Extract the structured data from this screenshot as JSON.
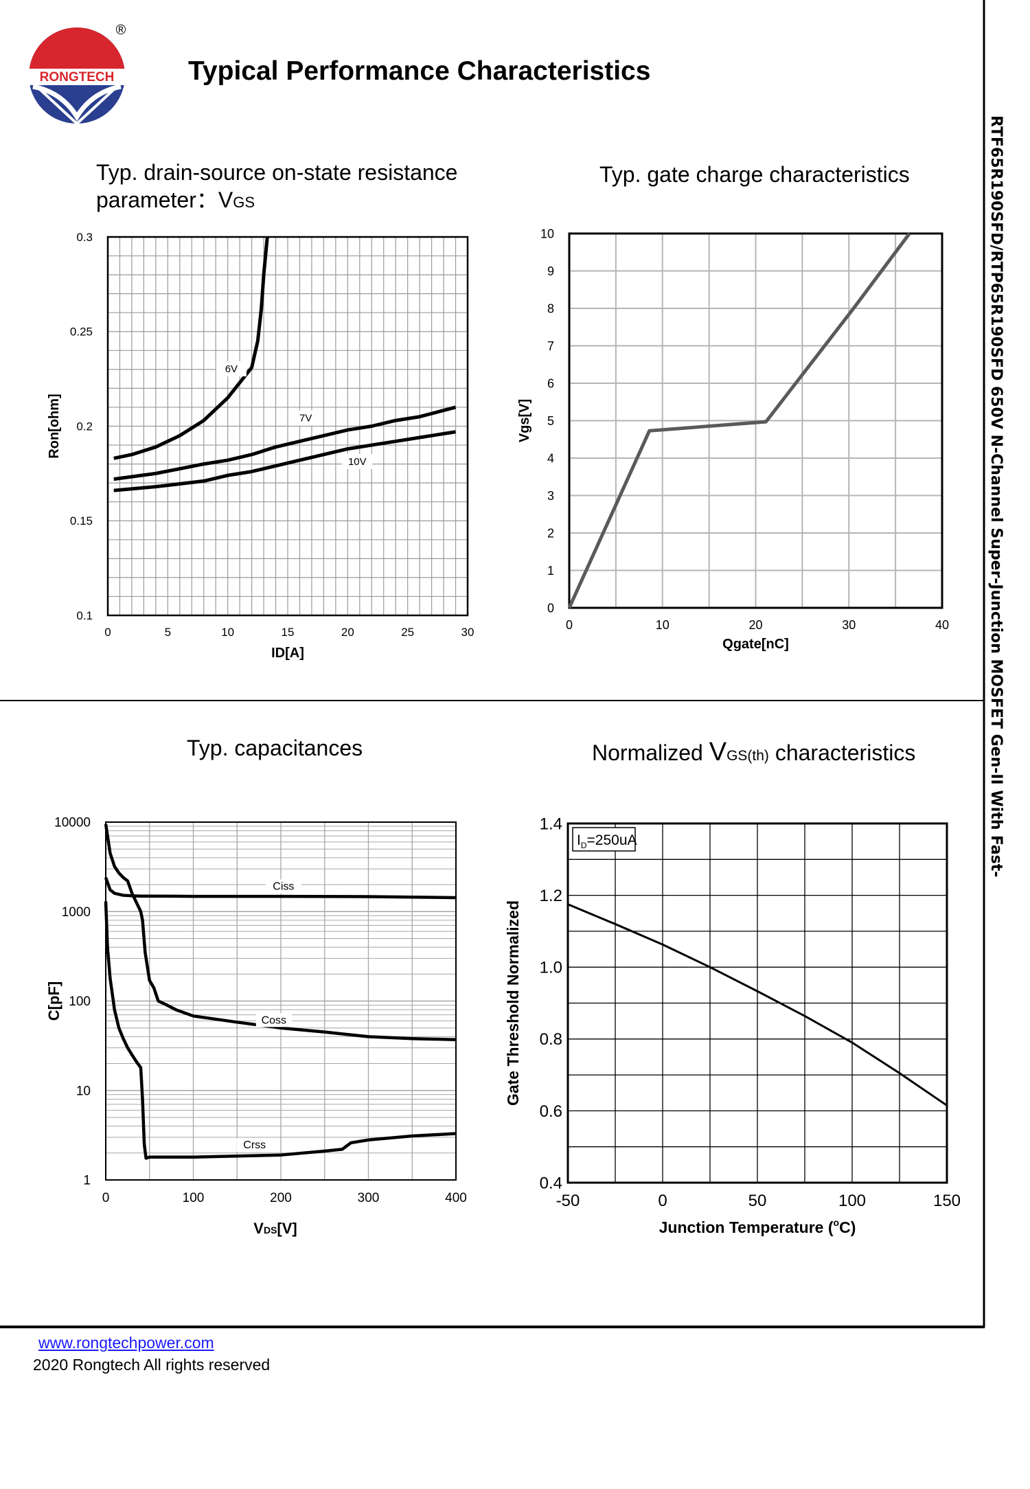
{
  "header": {
    "brand": "RONGTECH",
    "registered_mark": "®",
    "title": "Typical Performance Characteristics",
    "side_title": "RTF65R190SFD/RTP65R190SFD 650V N-Channel Super-Junction MOSFET Gen-II With Fast-"
  },
  "footer": {
    "link": "www.rongtechpower.com",
    "copyright": "2020 Rongtech All rights reserved"
  },
  "chart_data": [
    {
      "type": "line",
      "title": "Typ. drain-source on-state resistance",
      "subtitle_prefix": "parameter：",
      "subtitle_var": "V",
      "subtitle_sub": "GS",
      "xlabel": "ID[A]",
      "ylabel": "Ron[ohm]",
      "xlim": [
        0,
        30
      ],
      "ylim": [
        0.1,
        0.3
      ],
      "xticks": [
        0,
        5,
        10,
        15,
        20,
        25,
        30
      ],
      "yticks": [
        0.1,
        0.15,
        0.2,
        0.25,
        0.3
      ],
      "ytick_labels": [
        "0.1",
        "0.15",
        "0.2",
        "0.25",
        "0.3"
      ],
      "grid": true,
      "series": [
        {
          "name": "6V",
          "x": [
            0.5,
            2,
            4,
            6,
            8,
            10,
            12,
            12.5,
            12.8,
            13,
            13.3
          ],
          "y": [
            0.183,
            0.185,
            0.189,
            0.195,
            0.203,
            0.215,
            0.231,
            0.245,
            0.262,
            0.28,
            0.3
          ]
        },
        {
          "name": "7V",
          "x": [
            0.5,
            4,
            8,
            10,
            12,
            14,
            16,
            18,
            20,
            22,
            24,
            26,
            29
          ],
          "y": [
            0.172,
            0.175,
            0.18,
            0.182,
            0.185,
            0.189,
            0.192,
            0.195,
            0.198,
            0.2,
            0.203,
            0.205,
            0.21
          ]
        },
        {
          "name": "10V",
          "x": [
            0.5,
            4,
            8,
            10,
            12,
            14,
            16,
            18,
            20,
            22,
            24,
            26,
            29
          ],
          "y": [
            0.166,
            0.168,
            0.171,
            0.174,
            0.176,
            0.179,
            0.182,
            0.185,
            0.188,
            0.19,
            0.192,
            0.194,
            0.197
          ]
        }
      ],
      "annotations": [
        "6V",
        "7V",
        "10V"
      ]
    },
    {
      "type": "line",
      "title": "Typ. gate charge characteristics",
      "xlabel": "Qgate[nC]",
      "ylabel": "Vgs[V]",
      "xlim": [
        0,
        40
      ],
      "ylim": [
        0,
        10
      ],
      "xticks": [
        0,
        10,
        20,
        30,
        40
      ],
      "yticks": [
        0,
        1,
        2,
        3,
        4,
        5,
        6,
        7,
        8,
        9,
        10
      ],
      "grid": true,
      "series": [
        {
          "name": "",
          "x": [
            0,
            8.6,
            21.1,
            30.5,
            36.5
          ],
          "y": [
            0,
            4.73,
            4.97,
            8.0,
            10.0
          ]
        }
      ]
    },
    {
      "type": "line",
      "title": "Typ. capacitances",
      "xlabel_var": "V",
      "xlabel_sub": "DS",
      "xlabel_unit": "[V]",
      "ylabel": "C[pF]",
      "xlim": [
        0,
        400
      ],
      "ylim": [
        1,
        10000
      ],
      "yscale": "log",
      "xticks": [
        0,
        100,
        200,
        300,
        400
      ],
      "yticks": [
        1,
        10,
        100,
        1000,
        10000
      ],
      "grid": true,
      "series": [
        {
          "name": "Ciss",
          "x": [
            0,
            5,
            10,
            20,
            30,
            40,
            50,
            100,
            200,
            300,
            400
          ],
          "y": [
            2400,
            1750,
            1600,
            1520,
            1500,
            1490,
            1490,
            1480,
            1480,
            1470,
            1430
          ]
        },
        {
          "name": "Coss",
          "x": [
            0,
            5,
            10,
            15,
            20,
            25,
            30,
            40,
            42,
            45,
            50,
            55,
            60,
            70,
            80,
            100,
            150,
            200,
            250,
            300,
            350,
            400
          ],
          "y": [
            9500,
            4500,
            3200,
            2700,
            2400,
            2200,
            1600,
            1000,
            800,
            350,
            170,
            140,
            100,
            90,
            80,
            68,
            58,
            50,
            45,
            40,
            38,
            37
          ]
        },
        {
          "name": "Crss",
          "x": [
            0,
            2,
            5,
            10,
            15,
            20,
            25,
            30,
            35,
            40,
            42,
            44,
            46,
            50,
            100,
            150,
            200,
            250,
            270,
            280,
            300,
            350,
            400
          ],
          "y": [
            1300,
            400,
            180,
            80,
            50,
            38,
            30,
            25,
            21,
            18,
            8,
            2.5,
            1.75,
            1.8,
            1.8,
            1.85,
            1.9,
            2.1,
            2.2,
            2.6,
            2.8,
            3.1,
            3.3
          ]
        }
      ],
      "annotations": [
        "Ciss",
        "Coss",
        "Crss"
      ]
    },
    {
      "type": "line",
      "title_prefix": "Normalized ",
      "title_var": "V",
      "title_sub": "GS(th)",
      "title_suffix": " characteristics",
      "xlabel": "Junction Temperature (",
      "xlabel_sup": "o",
      "xlabel_end": "C)",
      "ylabel": "Gate Threshold Normalized",
      "xlim": [
        -50,
        150
      ],
      "ylim": [
        0.4,
        1.4
      ],
      "xticks": [
        -50,
        0,
        50,
        100,
        150
      ],
      "yticks": [
        0.4,
        0.6,
        0.8,
        1.0,
        1.2,
        1.4
      ],
      "ytick_labels": [
        "0.4",
        "0.6",
        "0.8",
        "1.0",
        "1.2",
        "1.4"
      ],
      "grid": true,
      "legend_prefix": "I",
      "legend_sub": "D",
      "legend_value": "=250uA",
      "series": [
        {
          "name": "",
          "x": [
            -50,
            -25,
            0,
            25,
            50,
            75,
            100,
            125,
            150
          ],
          "y": [
            1.175,
            1.12,
            1.063,
            1.0,
            0.933,
            0.864,
            0.79,
            0.705,
            0.615
          ]
        }
      ]
    }
  ]
}
